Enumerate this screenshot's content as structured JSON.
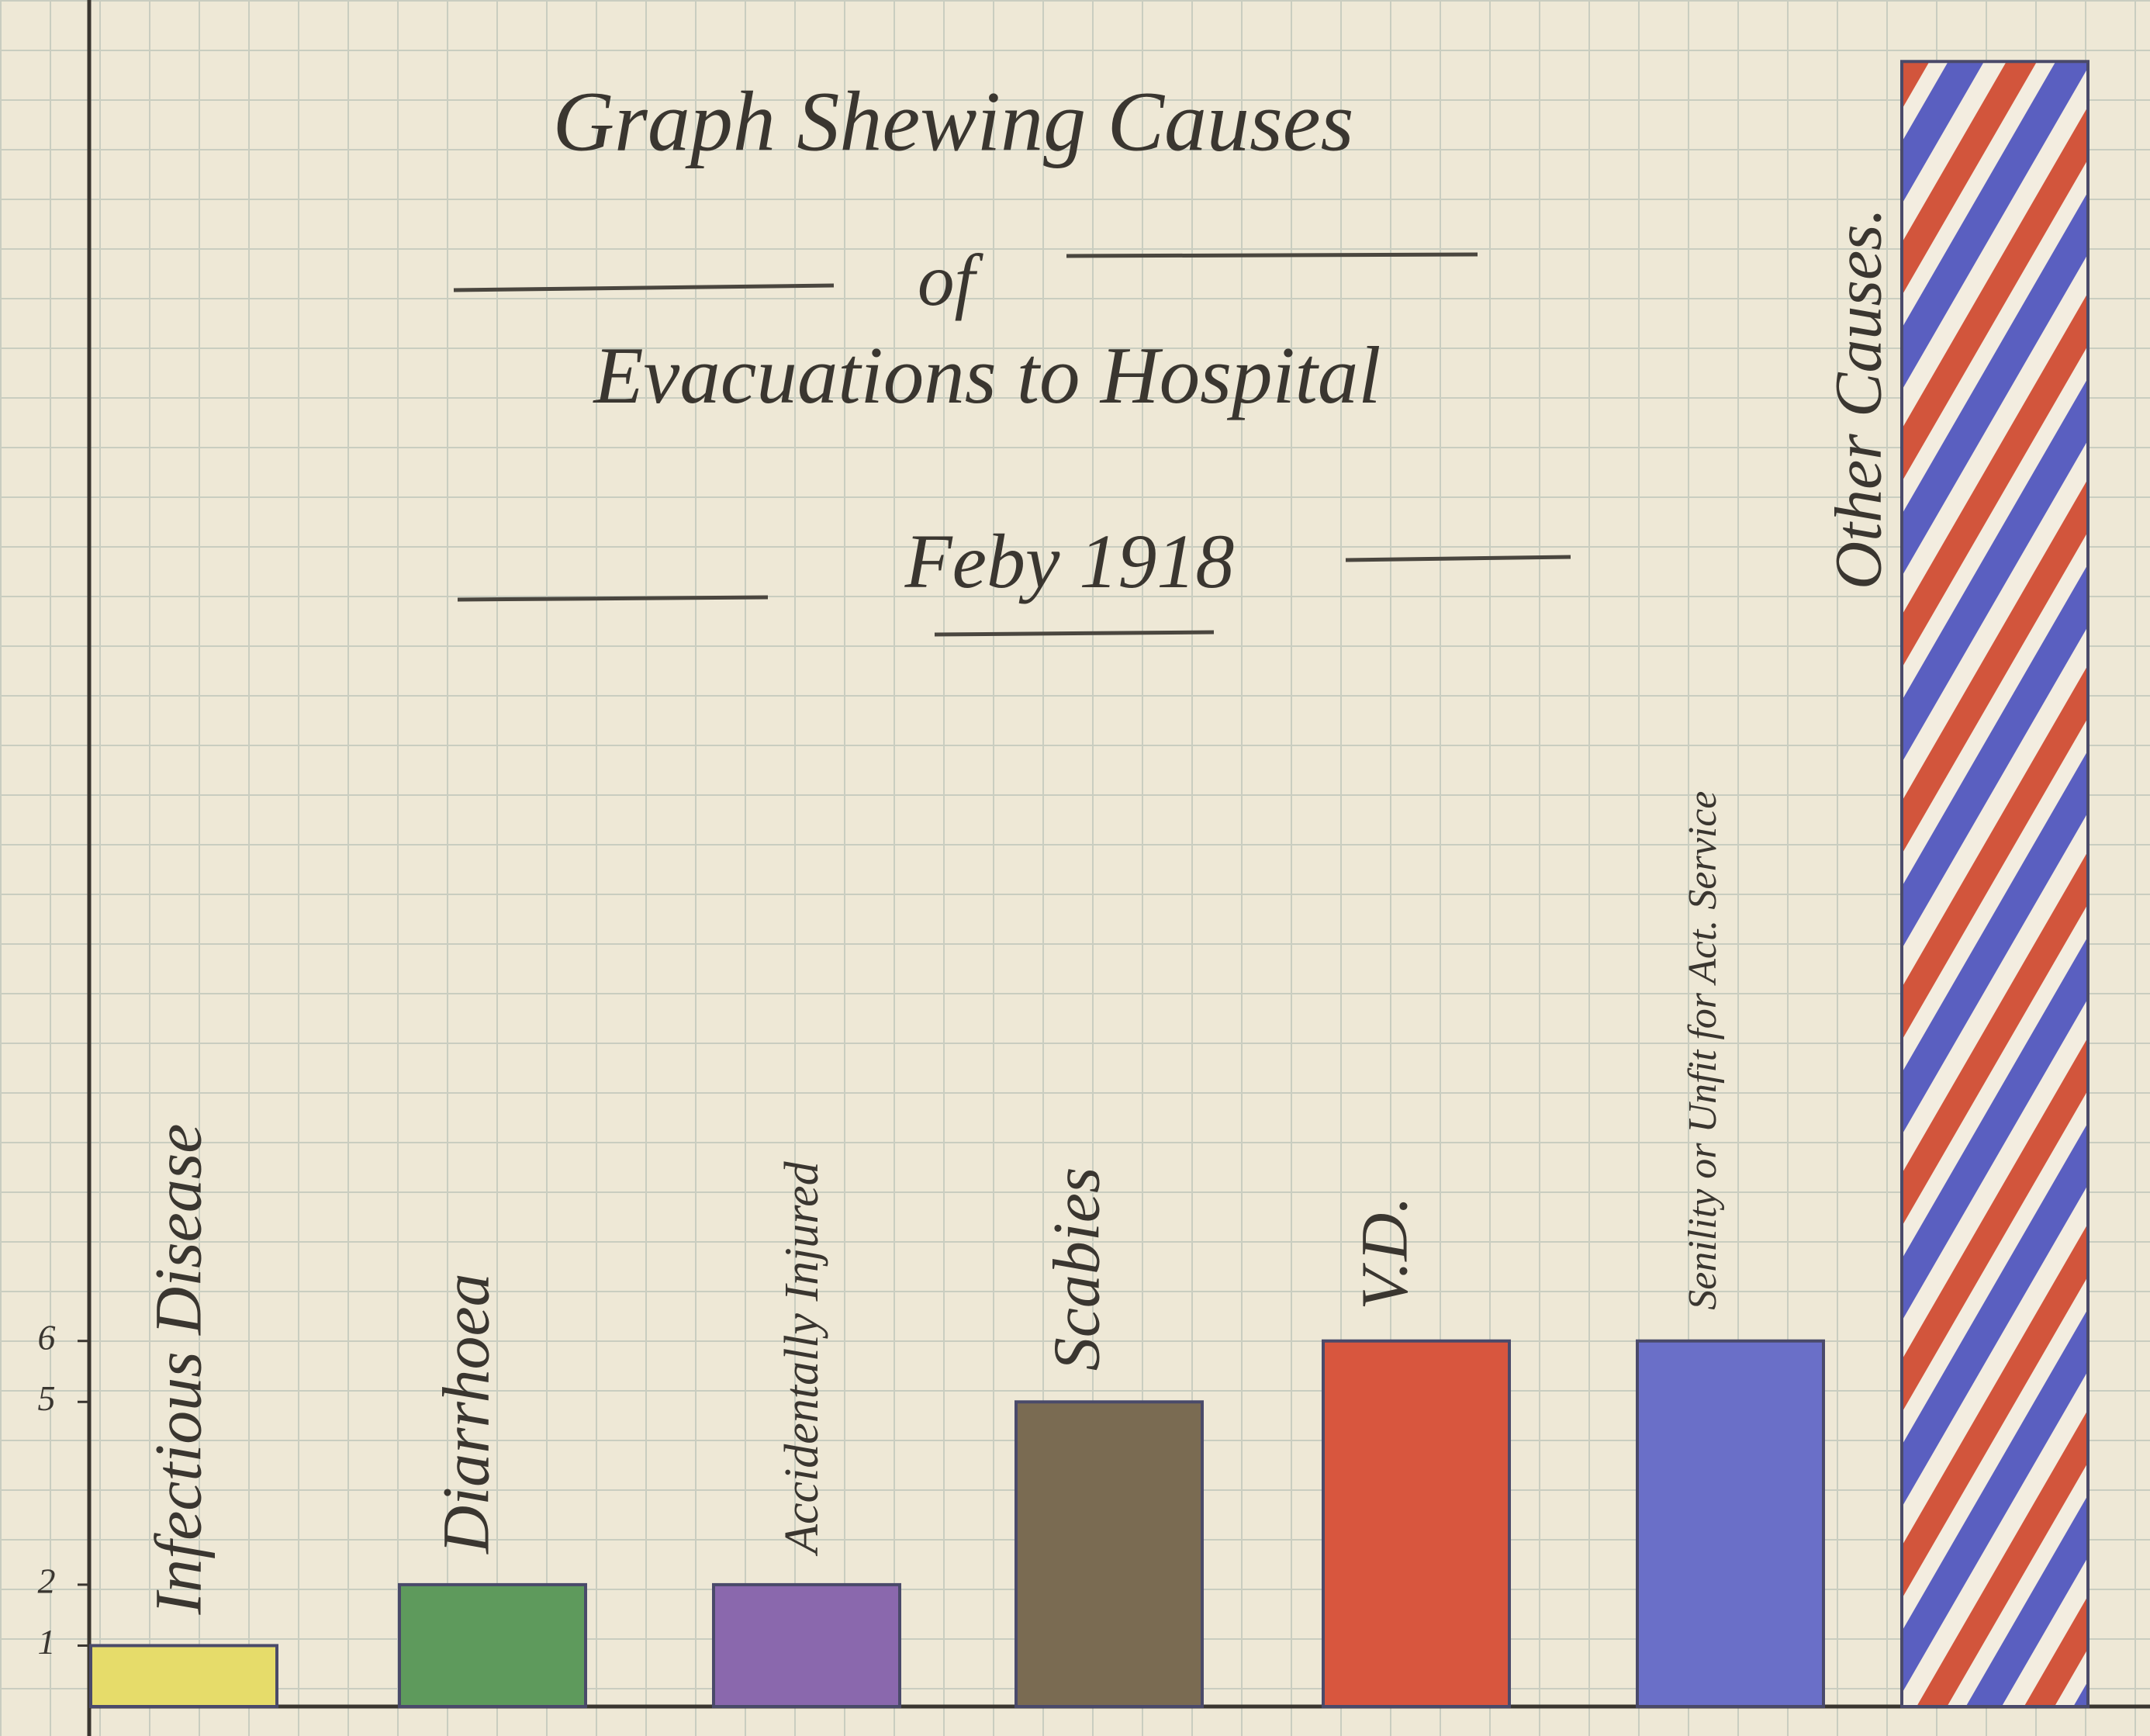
{
  "chart_data": {
    "type": "bar",
    "title": [
      "Graph Shewing Causes",
      "of",
      "Evacuations to Hospital",
      "Feby 1918"
    ],
    "categories": [
      "Infectious Disease",
      "Diarrhoea",
      "Accidentally Injured",
      "Scabies",
      "V.D.",
      "Senility or Unfit for Act. Service",
      "Other Causes."
    ],
    "values": [
      1,
      2,
      2,
      5,
      6,
      6,
      27
    ],
    "colors": [
      "#e6dc6a",
      "#5e9a5c",
      "#8a68ad",
      "#7a6b52",
      "#d8563e",
      "#6a6fc8",
      "#d2553c"
    ],
    "ylim": [
      0,
      27.5
    ],
    "yticks": [
      1,
      2,
      5,
      6
    ],
    "grid": true
  }
}
